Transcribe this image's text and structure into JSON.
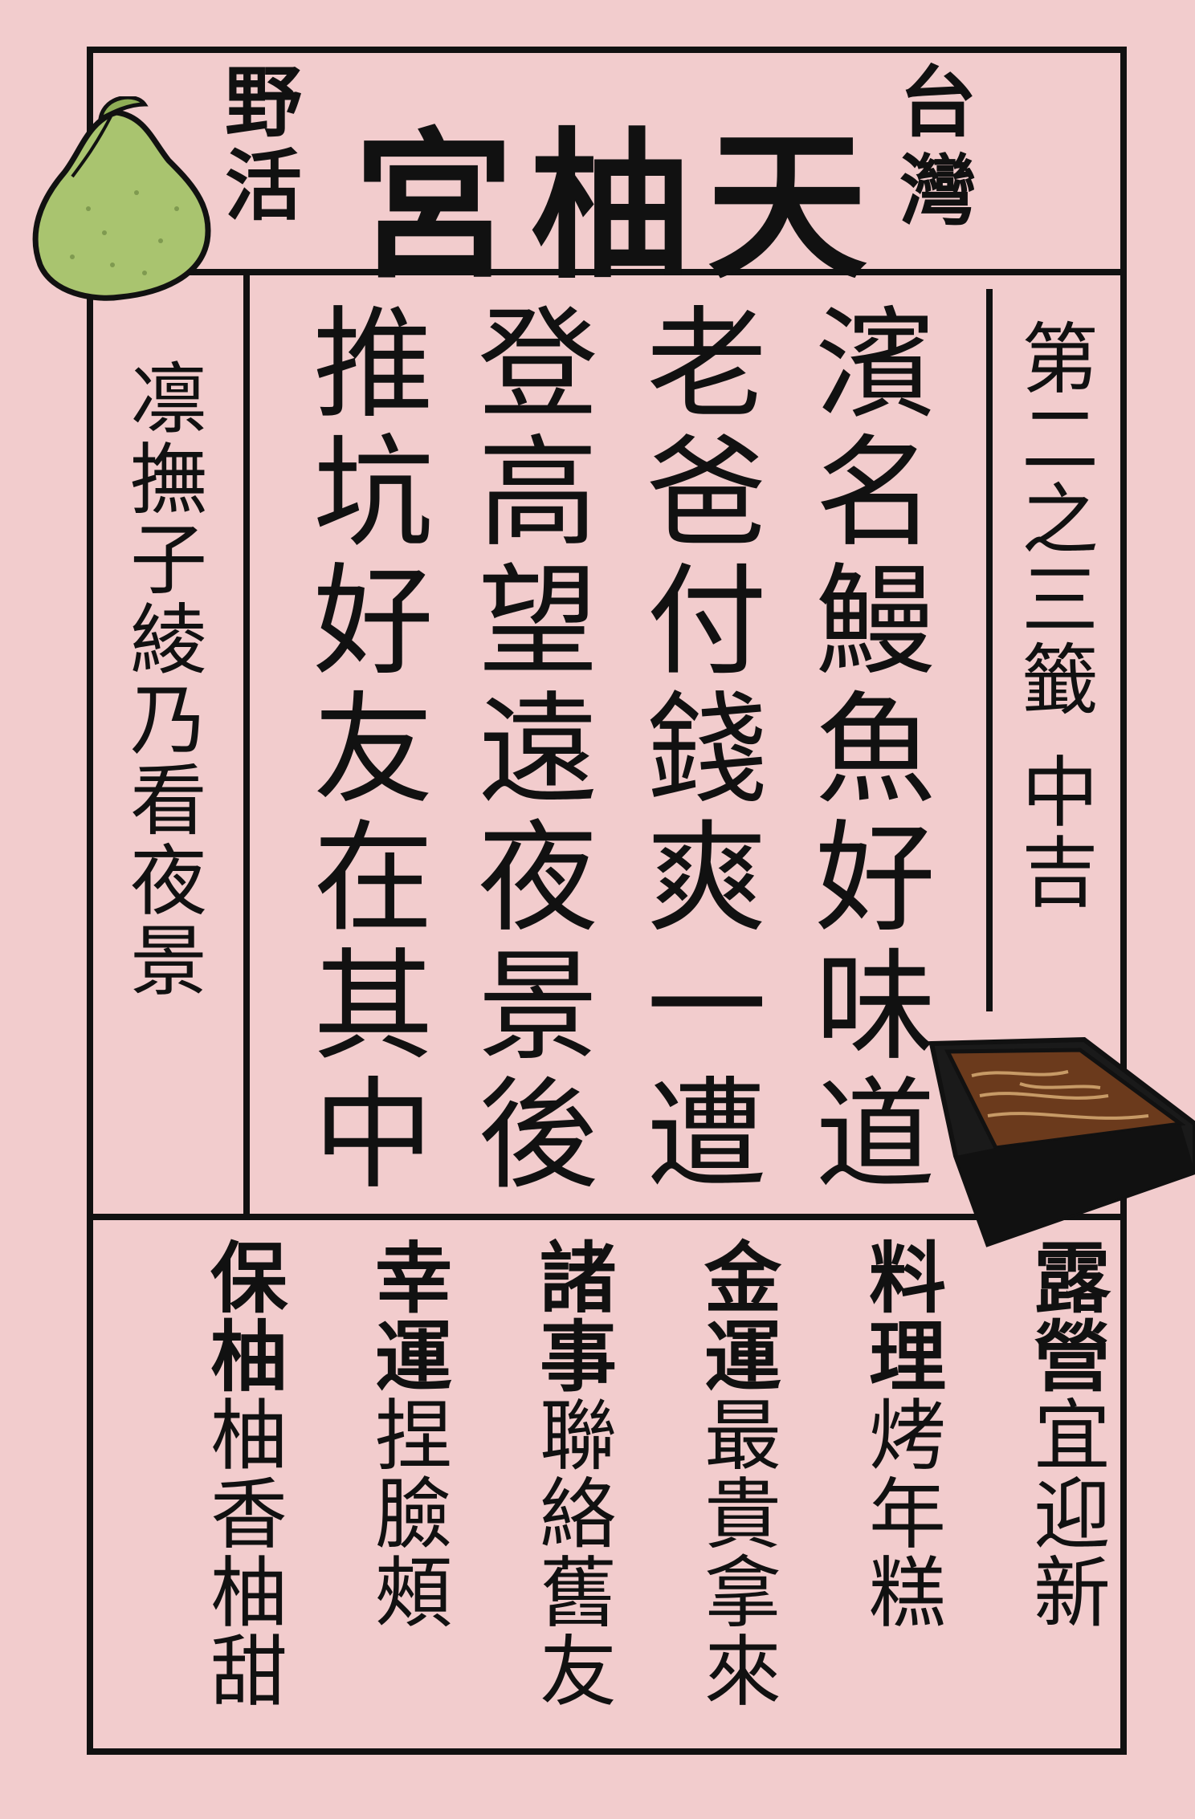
{
  "header": {
    "title": "宮柚天",
    "left_label": [
      "野",
      "活"
    ],
    "right_label": [
      "台",
      "灣"
    ]
  },
  "fortune_label": [
    "第",
    "二",
    "之",
    "三",
    "籤",
    "　",
    "中",
    "吉"
  ],
  "poem_lines": [
    [
      "濱",
      "名",
      "鰻",
      "魚",
      "好",
      "味",
      "道"
    ],
    [
      "老",
      "爸",
      "付",
      "錢",
      "爽",
      "一",
      "遭"
    ],
    [
      "登",
      "高",
      "望",
      "遠",
      "夜",
      "景",
      "後"
    ],
    [
      "推",
      "坑",
      "好",
      "友",
      "在",
      "其",
      "中"
    ]
  ],
  "left_note": [
    "凛",
    "撫",
    "子",
    "綾",
    "乃",
    "看",
    "夜",
    "景"
  ],
  "categories": [
    {
      "title": [
        "露",
        "營"
      ],
      "body": [
        "宜",
        "迎",
        "新"
      ]
    },
    {
      "title": [
        "料",
        "理"
      ],
      "body": [
        "烤",
        "年",
        "糕"
      ]
    },
    {
      "title": [
        "金",
        "運"
      ],
      "body": [
        "最",
        "貴",
        "拿",
        "來"
      ]
    },
    {
      "title": [
        "諸",
        "事"
      ],
      "body": [
        "聯",
        "絡",
        "舊",
        "友"
      ]
    },
    {
      "title": [
        "幸",
        "運"
      ],
      "body": [
        "捏",
        "臉",
        "頰"
      ]
    },
    {
      "title": [
        "保",
        "柚"
      ],
      "body": [
        "柚",
        "香",
        "柚",
        "甜"
      ]
    }
  ],
  "colors": {
    "background": "#f2cccd",
    "ink": "#111111",
    "pomelo": "#a9c46f",
    "eel_box": "#1a1a1a",
    "eel": "#6b3a1c"
  },
  "icons": [
    "pomelo-icon",
    "unagi-box-icon"
  ]
}
